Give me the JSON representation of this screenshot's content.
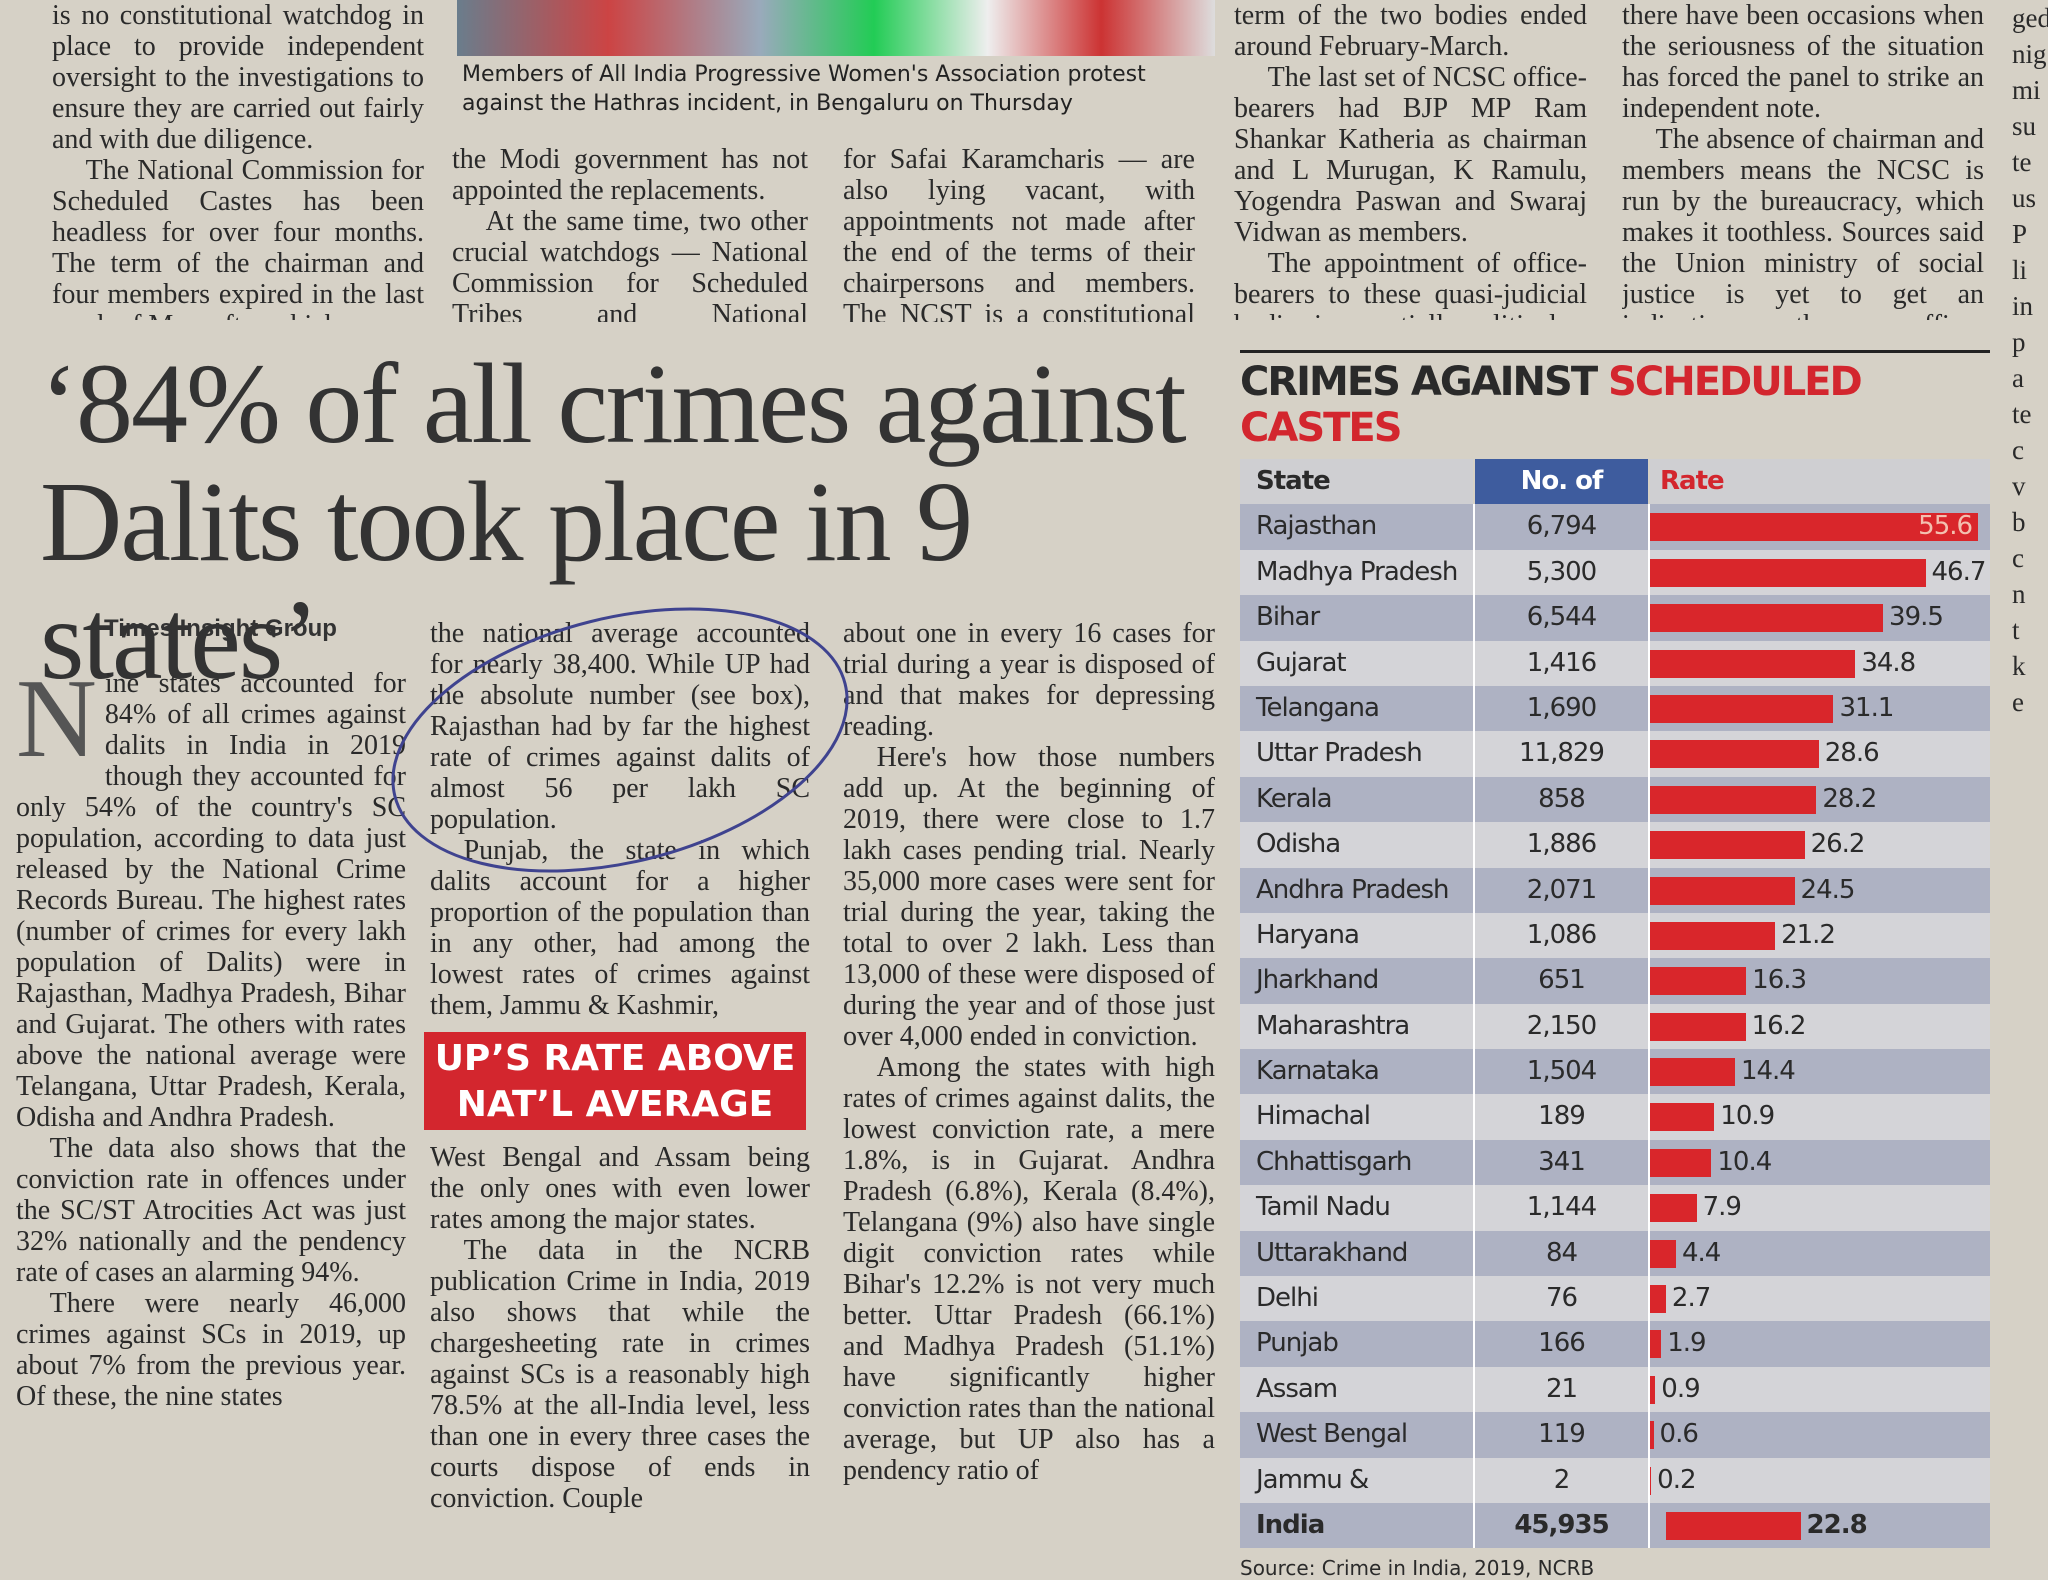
{
  "top": {
    "col1": [
      "is no constitutional watchdog in place to provide independent oversight to the investigations to ensure they are carried out fairly and with due diligence.",
      "The National Commission for Scheduled Castes has been headless for over four months. The term of the chairman and four members expired in the last week of May, after which"
    ],
    "caption": "Members of All India Progressive Women's Association protest against the Hathras incident, in Bengaluru on Thursday",
    "col2": [
      "the Modi government has not appointed the replacements.",
      "At the same time, two other crucial watchdogs — National Commission for Scheduled Tribes and National Commission"
    ],
    "col3": [
      "for Safai Karamcharis — are also lying vacant, with appointments not made after the end of the terms of their chairpersons and members. The NCST is a constitutional body like the"
    ],
    "col4": [
      "term of the two bodies ended around February-March.",
      "The last set of NCSC office-bearers had BJP MP Ram Shankar Katheria as chairman and L Murugan, K Ramulu, Yogendra Paswan and Swaraj Vidwan as members.",
      "The appointment of office-bearers to these quasi-judicial bodies is essentially political"
    ],
    "col5": [
      "there have been occasions when the seriousness of the situation has forced the panel to strike an independent note.",
      "The absence of chairman and members means the NCSC is run by the bureaucracy, which makes it toothless. Sources said the Union ministry of social justice is yet to get an indication on the new office-bearers."
    ],
    "edge": [
      "ged",
      "nig",
      "mi",
      "su",
      "te",
      "us",
      "P",
      "li",
      "in",
      "p",
      "a",
      "te",
      "c",
      "v",
      "b",
      "c",
      "n",
      "t",
      "k",
      "e"
    ]
  },
  "article": {
    "headline": "‘84% of all crimes against Dalits took place in 9 states’",
    "byline": "Times Insight Group",
    "col1": [
      "Nine states accounted for 84% of all crimes against dalits in India in 2019 though they accounted for only 54% of the country's SC population, according to data just released by the National Crime Records Bureau. The highest rates (number of crimes for every lakh population of Dalits) were in Rajasthan, Madhya Pradesh, Bihar and Gujarat. The others with rates above the national average were Telangana, Uttar Pradesh, Kerala, Odisha and Andhra Pradesh.",
      "The data also shows that the conviction rate in offences under the SC/ST Atrocities Act was just 32% nationally and the pendency rate of cases an alarming 94%.",
      "There were nearly 46,000 crimes against SCs in 2019, up about 7% from the previous year. Of these, the nine states"
    ],
    "col2a": [
      "the national average accounted for nearly 38,400. While UP had the absolute number (see box), Rajasthan had by far the highest rate of crimes against dalits of almost 56 per lakh SC population.",
      "Punjab, the state in which dalits account for a higher proportion of the population than in any other, had among the lowest rates of crimes against them, Jammu & Kashmir,"
    ],
    "box": [
      "UP’S RATE ABOVE",
      "NAT’L AVERAGE"
    ],
    "col2b": [
      "West Bengal and Assam being the only ones with even lower rates among the major states.",
      "The data in the NCRB publication Crime in India, 2019 also shows that while the chargesheeting rate in crimes against SCs is a reasonably high 78.5% at the all-India level, less than one in every three cases the courts dispose of ends in conviction. Couple"
    ],
    "col3": [
      "about one in every 16 cases for trial during a year is disposed of and that makes for depressing reading.",
      "Here's how those numbers add up. At the beginning of 2019, there were close to 1.7 lakh cases pending trial. Nearly 35,000 more cases were sent for trial during the year, taking the total to over 2 lakh. Less than 13,000 of these were disposed of during the year and of those just over 4,000 ended in conviction.",
      "Among the states with high rates of crimes against dalits, the lowest conviction rate, a mere 1.8%, is in Gujarat. Andhra Pradesh (6.8%), Kerala (8.4%), Telangana (9%) also have single digit conviction rates while Bihar's 12.2% is not very much better. Uttar Pradesh (66.1%) and Madhya Pradesh (51.1%) have significantly higher conviction rates than the national average, but UP also has a pendency ratio of"
    ]
  },
  "table": {
    "title_black": "CRIMES AGAINST",
    "title_red": "SCHEDULED CASTES",
    "headers": [
      "State",
      "No. of crimes",
      "Rate"
    ],
    "rows": [
      [
        "Rajasthan",
        "6,794",
        55.6
      ],
      [
        "Madhya Pradesh",
        "5,300",
        46.7
      ],
      [
        "Bihar",
        "6,544",
        39.5
      ],
      [
        "Gujarat",
        "1,416",
        34.8
      ],
      [
        "Telangana",
        "1,690",
        31.1
      ],
      [
        "Uttar Pradesh",
        "11,829",
        28.6
      ],
      [
        "Kerala",
        "858",
        28.2
      ],
      [
        "Odisha",
        "1,886",
        26.2
      ],
      [
        "Andhra Pradesh",
        "2,071",
        24.5
      ],
      [
        "Haryana",
        "1,086",
        21.2
      ],
      [
        "Jharkhand",
        "651",
        16.3
      ],
      [
        "Maharashtra",
        "2,150",
        16.2
      ],
      [
        "Karnataka",
        "1,504",
        14.4
      ],
      [
        "Himachal Pradesh",
        "189",
        10.9
      ],
      [
        "Chhattisgarh",
        "341",
        10.4
      ],
      [
        "Tamil Nadu",
        "1,144",
        7.9
      ],
      [
        "Uttarakhand",
        "84",
        4.4
      ],
      [
        "Delhi",
        "76",
        2.7
      ],
      [
        "Punjab",
        "166",
        1.9
      ],
      [
        "Assam",
        "21",
        0.9
      ],
      [
        "West Bengal",
        "119",
        0.6
      ],
      [
        "Jammu & Kashmir",
        "2",
        0.2
      ],
      [
        "India",
        "45,935",
        22.8
      ]
    ],
    "source": "Source: Crime in India, 2019, NCRB"
  }
}
